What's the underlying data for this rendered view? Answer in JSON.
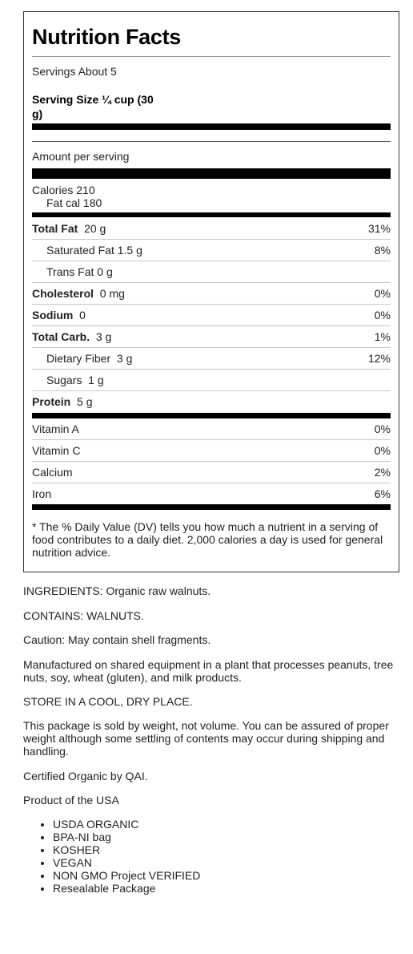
{
  "nutrition": {
    "title": "Nutrition Facts",
    "servings": "Servings About 5",
    "serving_size_line1": "Serving Size ¼ cup (30",
    "serving_size_line2": "g)",
    "amount_per_serving": "Amount per serving",
    "calories": "Calories 210",
    "fat_cal": "Fat cal 180",
    "nutrients": [
      {
        "name": "Total Fat",
        "amount": "20 g",
        "dv": "31%"
      },
      {
        "name": "Saturated Fat 1.5 g",
        "amount": "",
        "dv": "8%"
      },
      {
        "name": "Trans Fat 0 g",
        "amount": "",
        "dv": ""
      },
      {
        "name": "Cholesterol",
        "amount": "0 mg",
        "dv": "0%"
      },
      {
        "name": "Sodium",
        "amount": "0",
        "dv": "0%"
      },
      {
        "name": "Total Carb.",
        "amount": "3 g",
        "dv": "1%"
      },
      {
        "name": "Dietary Fiber",
        "amount": "3 g",
        "dv": "12%"
      },
      {
        "name": "Sugars",
        "amount": "1 g",
        "dv": ""
      },
      {
        "name": "Protein",
        "amount": "5 g",
        "dv": ""
      }
    ],
    "vitamins": [
      {
        "name": "Vitamin A",
        "dv": "0%"
      },
      {
        "name": "Vitamin C",
        "dv": "0%"
      },
      {
        "name": "Calcium",
        "dv": "2%"
      },
      {
        "name": "Iron",
        "dv": "6%"
      }
    ],
    "footnote": "* The % Daily Value (DV) tells you how much a nutrient in a serving of food contributes to a daily diet. 2,000 calories a day is used for general nutrition advice."
  },
  "details": {
    "ingredients": "INGREDIENTS: Organic raw walnuts.",
    "contains": "CONTAINS: WALNUTS.",
    "caution": "Caution: May contain shell fragments.",
    "manufactured": "Manufactured on shared equipment in a plant that processes peanuts, tree nuts, soy, wheat (gluten), and milk products.",
    "store": "STORE IN A COOL, DRY PLACE.",
    "weight": "This package is sold by weight, not volume. You can be assured of proper weight although some settling of contents may occur during shipping and handling.",
    "certified": "Certified Organic by QAI.",
    "product": "Product of the USA",
    "badges": [
      "USDA ORGANIC",
      "BPA-NI bag",
      "KOSHER",
      "VEGAN",
      "NON GMO Project VERIFIED",
      "Resealable Package"
    ]
  }
}
